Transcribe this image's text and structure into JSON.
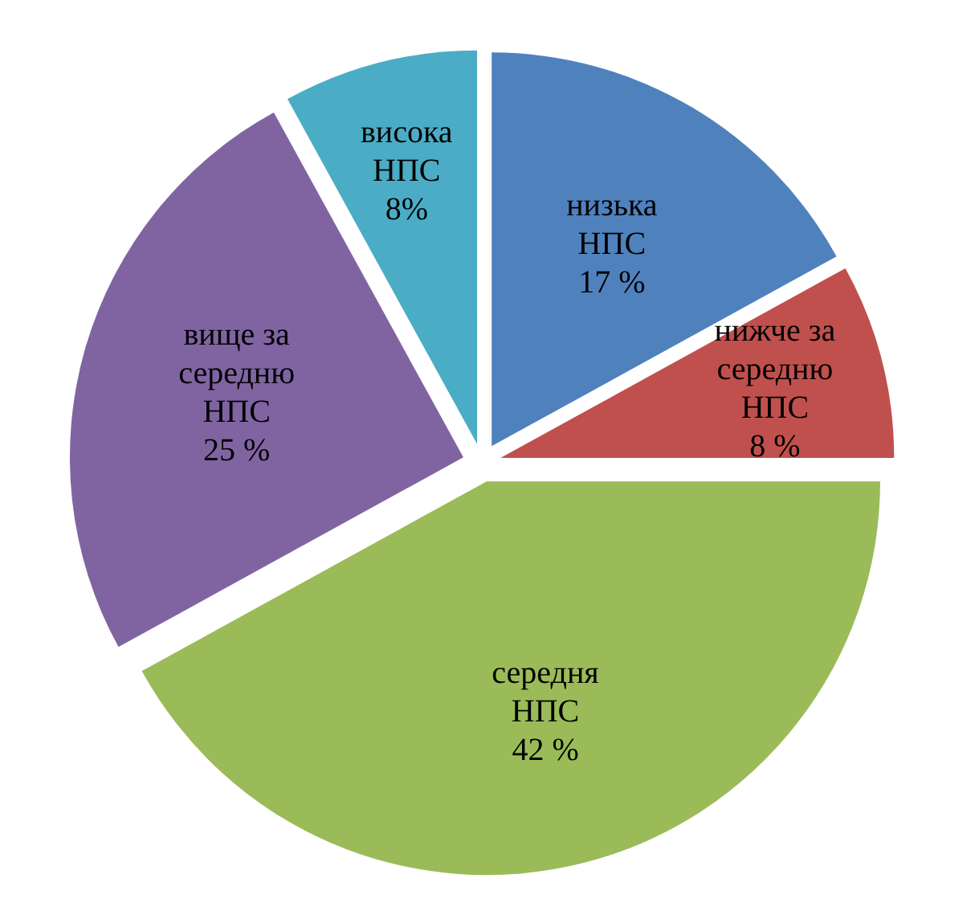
{
  "chart_data": {
    "type": "pie",
    "categories": [
      "низька НПС",
      "нижче за середню НПС",
      "середня НПС",
      "вище за середню НПС",
      "висока НПС"
    ],
    "values": [
      17,
      8,
      42,
      25,
      8
    ],
    "colors": [
      "#4f81bd",
      "#c0504d",
      "#9bbb59",
      "#8064a2",
      "#4bacc6"
    ],
    "value_labels": [
      "17 %",
      "8 %",
      "42 %",
      "25 %",
      "8%"
    ]
  }
}
